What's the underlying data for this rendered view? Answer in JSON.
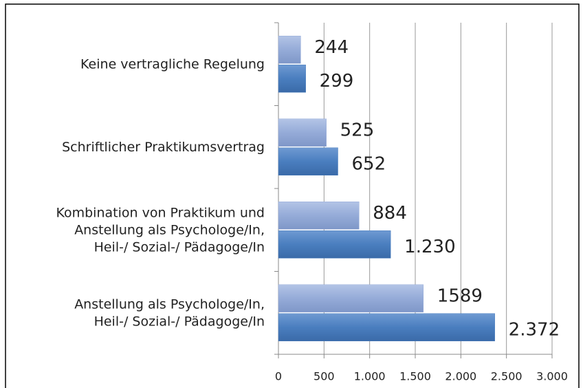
{
  "chart_data": {
    "type": "hbar",
    "categories": [
      [
        "Keine vertragliche Regelung"
      ],
      [
        "Schriftlicher Praktikumsvertrag"
      ],
      [
        "Kombination von Praktikum und",
        "Anstellung als Psychologe/In,",
        "Heil-/ Sozial-/ Pädagoge/In"
      ],
      [
        "Anstellung als Psychologe/In,",
        "Heil-/ Sozial-/ Pädagoge/In"
      ]
    ],
    "series": [
      {
        "color": "#95abd8",
        "values": [
          244,
          525,
          884,
          1589
        ]
      },
      {
        "color": "#4a7ebf",
        "values": [
          299,
          652,
          1230,
          2372
        ],
        "value_labels": [
          "299",
          "652",
          "1.230",
          "2.372"
        ]
      }
    ],
    "xlim": [
      0,
      3000
    ],
    "xticks": [
      0,
      500,
      {
        "value": 1000,
        "label": "1.000"
      },
      {
        "value": 1500,
        "label": "1.500"
      },
      {
        "value": 2000,
        "label": "2.000"
      },
      {
        "value": 2500,
        "label": "2.500"
      },
      {
        "value": 3000,
        "label": "3.000"
      }
    ],
    "grid": true
  }
}
